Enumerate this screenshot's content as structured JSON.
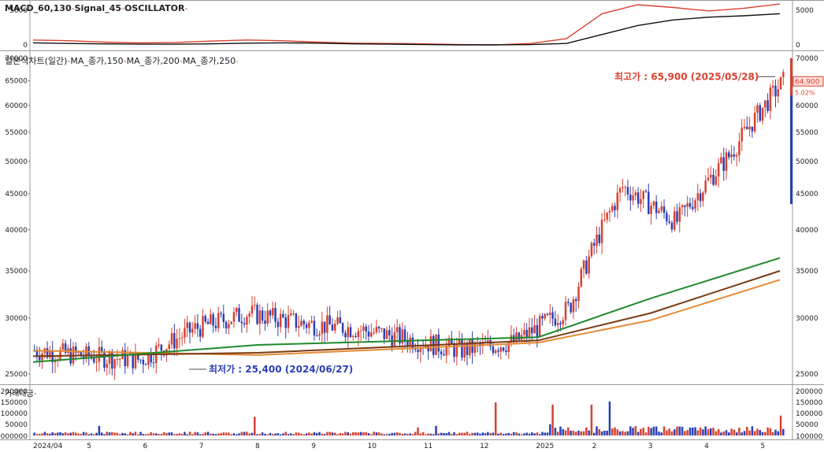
{
  "macd_panel": {
    "title": "MACD_60,130",
    "signal": "Signal_45",
    "osc": "OSCILLATOR",
    "y_ticks": [
      5000,
      0
    ]
  },
  "price_panel": {
    "title_parts": [
      "일본식차트(일간)",
      "MA_종가,150",
      "MA_종가,200",
      "MA_종가,250"
    ],
    "y_ticks": [
      70000,
      65000,
      60000,
      55000,
      50000,
      45000,
      40000,
      35000,
      30000,
      25000
    ],
    "high_label": "최고가 : 65,900 (2025/05/28)",
    "low_label": "최저가 : 25,400 (2024/06/27)",
    "current_price": "64,900",
    "current_change": "5.02%"
  },
  "volume_panel": {
    "title": "거래대금",
    "y_ticks": [
      "200000",
      "150000",
      "100000",
      "50000"
    ],
    "bottom_left": "1000000",
    "bottom_right": "100000"
  },
  "x_axis": [
    "2024/04",
    "5",
    "6",
    "7",
    "8",
    "9",
    "10",
    "11",
    "12",
    "2025",
    "2",
    "3",
    "4",
    "5"
  ],
  "colors": {
    "up": "#d8412f",
    "down": "#2a3fb5",
    "ma150": "#1e8a2a",
    "ma200": "#7a3b12",
    "ma250": "#e48a35",
    "macd": "#111111",
    "signal": "#d8412f"
  },
  "chart_data": {
    "type": "candlestick",
    "price_range": [
      24500,
      70500
    ],
    "high": 65900,
    "low": 25400,
    "close_points": [
      {
        "x": "2024/04",
        "y": 27000
      },
      {
        "x": "5",
        "y": 26500
      },
      {
        "x": "6",
        "y": 26200
      },
      {
        "x": "7",
        "y": 29000
      },
      {
        "x": "8",
        "y": 30500
      },
      {
        "x": "9",
        "y": 29500
      },
      {
        "x": "10",
        "y": 29000
      },
      {
        "x": "11",
        "y": 28000
      },
      {
        "x": "12",
        "y": 27000
      },
      {
        "x": "2025",
        "y": 27800
      },
      {
        "x": "2",
        "y": 31000
      },
      {
        "x": "3",
        "y": 46000
      },
      {
        "x": "4",
        "y": 41000
      },
      {
        "x": "5",
        "y": 51000
      },
      {
        "x": "5",
        "y": 64900
      }
    ],
    "ma150": [
      {
        "x": "2024/04",
        "y": 26000
      },
      {
        "x": "8",
        "y": 27500
      },
      {
        "x": "2025",
        "y": 28200
      },
      {
        "x": "3",
        "y": 32000
      },
      {
        "x": "5",
        "y": 36500
      }
    ],
    "ma200": [
      {
        "x": "2024/04",
        "y": 26500
      },
      {
        "x": "8",
        "y": 26800
      },
      {
        "x": "2025",
        "y": 27900
      },
      {
        "x": "3",
        "y": 30500
      },
      {
        "x": "5",
        "y": 35000
      }
    ],
    "ma250": [
      {
        "x": "2024/04",
        "y": 27000
      },
      {
        "x": "8",
        "y": 26600
      },
      {
        "x": "2025",
        "y": 27700
      },
      {
        "x": "3",
        "y": 29800
      },
      {
        "x": "5",
        "y": 34000
      }
    ]
  }
}
